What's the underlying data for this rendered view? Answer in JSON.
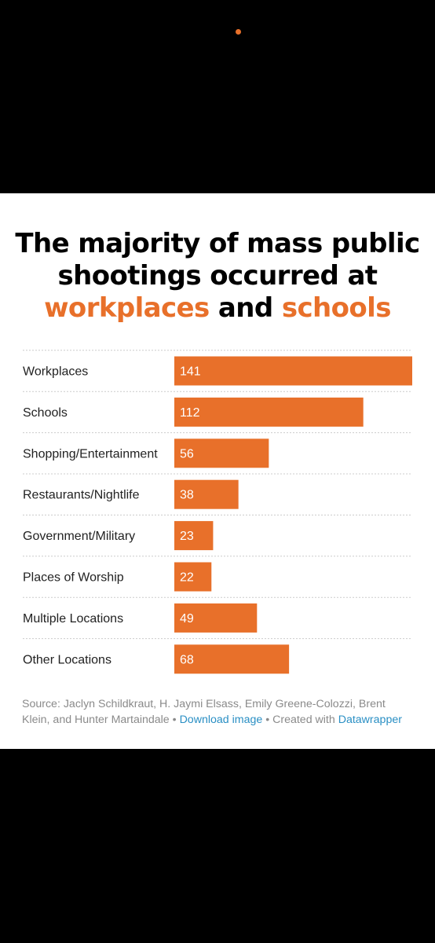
{
  "title": {
    "part1": "The majority of mass public shootings occurred at ",
    "highlight1": "workplaces",
    "part2": " and ",
    "highlight2": "schools"
  },
  "colors": {
    "bar": "#e8702a",
    "title_highlight": "#e8702a",
    "link": "#2a8fc4",
    "source_text": "#8a8a8a",
    "divider": "#cccccc"
  },
  "chart_data": {
    "type": "bar",
    "orientation": "horizontal",
    "categories": [
      "Workplaces",
      "Schools",
      "Shopping/Entertainment",
      "Restaurants/Nightlife",
      "Government/Military",
      "Places of Worship",
      "Multiple Locations",
      "Other Locations"
    ],
    "values": [
      141,
      112,
      56,
      38,
      23,
      22,
      49,
      68
    ],
    "xlim": [
      0,
      141
    ],
    "grid": false,
    "value_labels": "inside-bar-left"
  },
  "footer": {
    "source_text": "Source: Jaclyn Schildkraut, H. Jaymi Elsass, Emily Greene-Colozzi, Brent Klein, and Hunter Martaindale",
    "separator": " • ",
    "download_link": "Download image",
    "created_with": "Created with",
    "datawrapper_link": "Datawrapper"
  }
}
